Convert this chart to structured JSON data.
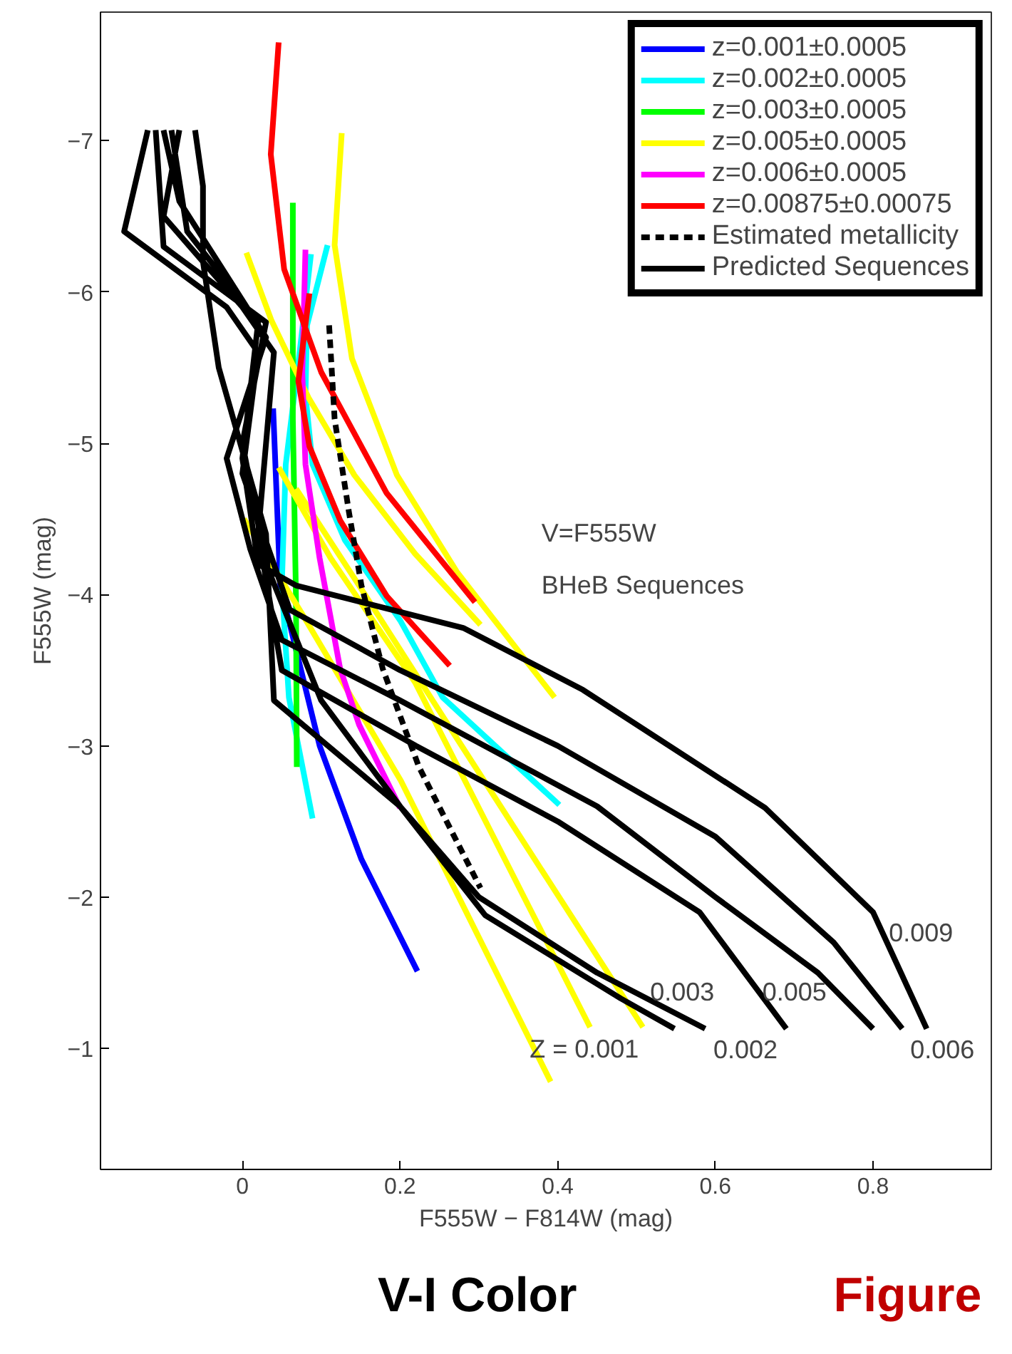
{
  "chart_data": {
    "type": "line",
    "xlabel": "F555W − F814W (mag)",
    "ylabel": "F555W (mag)",
    "xlim": [
      -0.18,
      0.95
    ],
    "ylim": [
      -0.2,
      -7.85
    ],
    "xticks": [
      0,
      0.2,
      0.4,
      0.6,
      0.8
    ],
    "yticks": [
      -7,
      -6,
      -5,
      -4,
      -3,
      -2,
      -1
    ],
    "grid": false,
    "legend": "top right",
    "marker": "none",
    "line_style": "solid",
    "series": [
      {
        "name": "z=0.001±0.0005",
        "color": "#0000ff",
        "x": [
          0.039,
          0.048,
          0.098,
          0.151,
          0.222
        ],
        "values": [
          -5.23,
          -4.06,
          -3.0,
          -2.25,
          -1.51
        ]
      },
      {
        "name": "z=0.002±0.0005",
        "color": "#00ffff",
        "x": [
          0.108,
          0.082,
          0.08,
          0.089,
          0.13,
          0.2,
          0.254,
          0.402,
          null,
          0.087,
          0.073,
          0.055,
          0.05,
          0.059,
          0.089
        ],
        "values": [
          -6.31,
          -5.78,
          -5.32,
          -4.86,
          -4.36,
          -3.83,
          -3.32,
          -2.61,
          null,
          -6.25,
          -5.62,
          -4.86,
          -4.06,
          -3.32,
          -2.52
        ]
      },
      {
        "name": "z=0.003±0.0005",
        "color": "#00ff00",
        "x": [
          0.064,
          0.064,
          0.068,
          0.069
        ],
        "values": [
          -6.59,
          -5.16,
          -3.97,
          -2.86
        ]
      },
      {
        "name": "z=0.005±0.0005",
        "color": "#ffff00",
        "x": [
          0.126,
          0.117,
          0.139,
          0.196,
          0.272,
          0.396,
          null,
          0.005,
          0.037,
          0.084,
          0.142,
          0.219,
          0.302,
          null,
          0.046,
          0.112,
          0.219,
          0.441,
          null,
          0.068,
          0.148,
          0.272,
          0.508,
          null,
          0.002,
          0.076,
          0.201,
          0.391
        ],
        "values": [
          -7.05,
          -6.31,
          -5.56,
          -4.79,
          -4.15,
          -3.32,
          null,
          -6.26,
          -5.81,
          -5.3,
          -4.79,
          -4.27,
          -3.8,
          null,
          -4.84,
          -4.24,
          -3.42,
          -1.14,
          null,
          -4.7,
          -4.06,
          -3.05,
          -1.14,
          null,
          -4.5,
          -3.87,
          -2.77,
          -0.78
        ]
      },
      {
        "name": "z=0.006±0.0005",
        "color": "#ff00ff",
        "x": [
          0.08,
          0.076,
          0.08,
          0.098,
          0.124,
          0.148,
          0.2
        ],
        "values": [
          -6.28,
          -5.47,
          -4.86,
          -4.24,
          -3.51,
          -3.14,
          -2.59
        ]
      },
      {
        "name": "z=0.00875±0.00075",
        "color": "#ff0000",
        "x": [
          0.046,
          0.036,
          0.053,
          0.1,
          0.183,
          0.295,
          null,
          0.085,
          0.071,
          0.085,
          0.124,
          0.183,
          0.263
        ],
        "values": [
          -7.65,
          -6.91,
          -6.15,
          -5.47,
          -4.67,
          -3.95,
          null,
          -5.99,
          -5.41,
          -4.98,
          -4.49,
          -3.99,
          -3.53
        ]
      },
      {
        "name": "Estimated metallicity",
        "color": "#000000",
        "line_style": "dashed",
        "x": [
          0.11,
          0.117,
          0.135,
          0.151,
          0.178,
          0.224,
          0.302
        ],
        "values": [
          -5.78,
          -5.16,
          -4.55,
          -4.06,
          -3.51,
          -2.86,
          -2.06
        ]
      },
      {
        "name": "Predicted Sequences",
        "color": "#000000",
        "x": [
          -0.09,
          -0.07,
          0.02,
          0.0,
          0.02,
          0.068,
          0.28,
          0.432,
          0.663,
          0.8,
          0.868,
          null,
          -0.12,
          -0.15,
          -0.02,
          0.02,
          0.0,
          0.06,
          0.2,
          0.4,
          0.6,
          0.75,
          0.837,
          null,
          -0.1,
          -0.08,
          0.03,
          -0.02,
          0.01,
          0.05,
          0.2,
          0.45,
          0.6,
          0.73,
          0.8,
          null,
          -0.08,
          -0.1,
          0.0,
          0.04,
          0.02,
          0.05,
          0.22,
          0.4,
          0.58,
          0.69,
          null,
          -0.06,
          -0.05,
          -0.05,
          -0.03,
          0.03,
          0.04,
          0.2,
          0.3,
          0.45,
          0.587,
          null,
          -0.11,
          -0.1,
          0.03,
          0.0,
          0.03,
          0.1,
          0.2,
          0.308,
          0.48,
          0.548
        ],
        "values": [
          -7.07,
          -6.4,
          -5.8,
          -4.9,
          -4.2,
          -4.06,
          -3.78,
          -3.37,
          -2.59,
          -1.9,
          -1.13,
          null,
          -7.07,
          -6.4,
          -5.9,
          -5.6,
          -4.8,
          -3.9,
          -3.5,
          -3.0,
          -2.4,
          -1.7,
          -1.13,
          null,
          -7.07,
          -6.6,
          -5.7,
          -4.9,
          -4.3,
          -3.7,
          -3.3,
          -2.6,
          -2.0,
          -1.5,
          -1.13,
          null,
          -7.07,
          -6.5,
          -5.9,
          -5.6,
          -4.4,
          -3.5,
          -3.0,
          -2.5,
          -1.9,
          -1.13,
          null,
          -7.07,
          -6.7,
          -6.2,
          -5.5,
          -4.4,
          -3.3,
          -2.6,
          -2.0,
          -1.5,
          -1.13,
          null,
          -7.07,
          -6.3,
          -5.8,
          -5.0,
          -4.2,
          -3.3,
          -2.6,
          -1.88,
          -1.33,
          -1.13
        ]
      }
    ],
    "annotations": [
      "V=F555W",
      "BHeB Sequences",
      "Z = 0.001",
      "0.002",
      "0.003",
      "0.005",
      "0.009",
      "0.006",
      "V-I Color",
      "Figure"
    ]
  }
}
